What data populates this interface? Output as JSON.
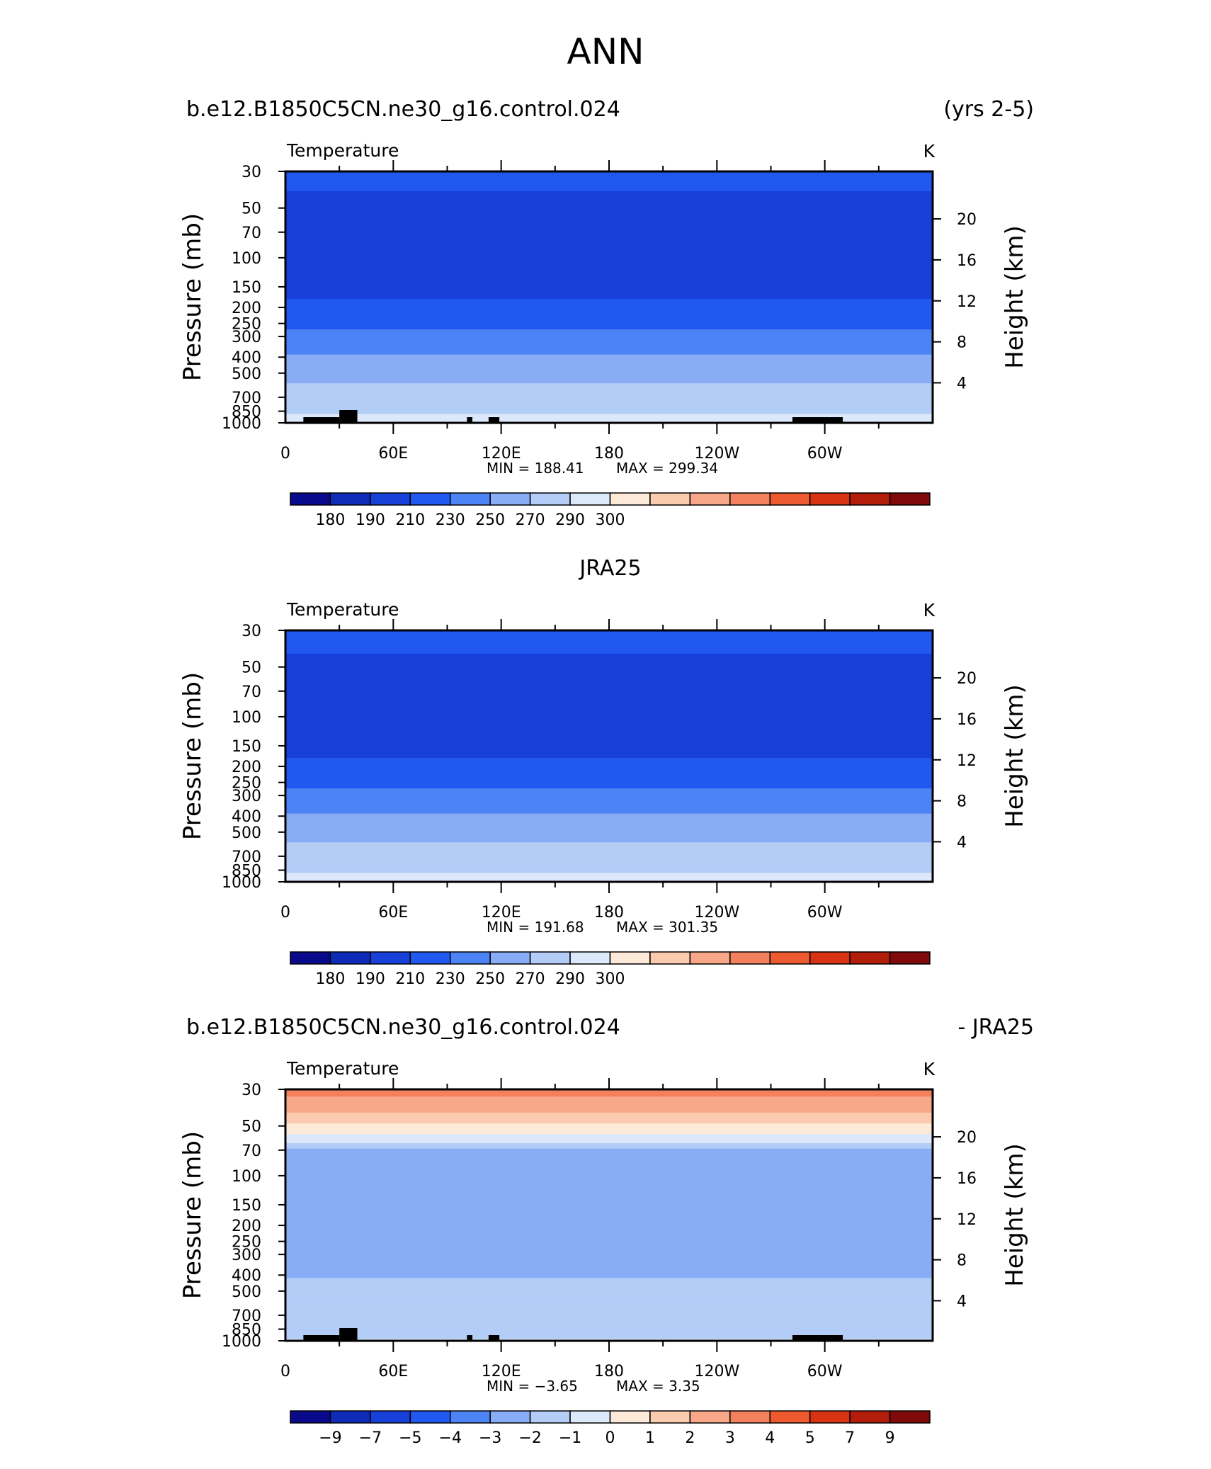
{
  "figure": {
    "title": "ANN"
  },
  "chart_data": [
    {
      "type": "heatmap",
      "case_left": "b.e12.B1850C5CN.ne30_g16.control.024",
      "case_right": "(yrs 2-5)",
      "case_center": "",
      "variable": "Temperature",
      "units": "K",
      "ylabel": "Pressure (mb)",
      "ylabel_right": "Height (km)",
      "yticks": [
        "30",
        "50",
        "70",
        "100",
        "150",
        "200",
        "250",
        "300",
        "400",
        "500",
        "700",
        "850",
        "1000"
      ],
      "ytick_values": [
        30,
        50,
        70,
        100,
        150,
        200,
        250,
        300,
        400,
        500,
        700,
        850,
        1000
      ],
      "yticks_right": [
        "20",
        "16",
        "12",
        "8",
        "4"
      ],
      "ytick_right_values": [
        20,
        16,
        12,
        8,
        4
      ],
      "xticks": [
        "0",
        "60E",
        "120E",
        "180",
        "120W",
        "60W"
      ],
      "xtick_values": [
        0,
        60,
        120,
        180,
        240,
        300
      ],
      "xlim": [
        0,
        360
      ],
      "ylim": [
        1000,
        30
      ],
      "min_label": "MIN = 188.41",
      "max_label": "MAX = 299.34",
      "levels": [
        180,
        190,
        210,
        230,
        250,
        270,
        290,
        300
      ],
      "level_labels": [
        "180",
        "190",
        "210",
        "230",
        "250",
        "270",
        "290",
        "300"
      ],
      "colorbar_labels": [
        "180",
        "190",
        "210",
        "230",
        "250",
        "270",
        "290",
        "300"
      ],
      "colors": [
        "#0a0a8c",
        "#0e2cb8",
        "#1740d8",
        "#2058f0",
        "#4d84f5",
        "#88acf5",
        "#b3cdf7",
        "#dce9fa",
        "#fde9d7",
        "#fbcbaf",
        "#f8a888",
        "#f4815d",
        "#ee5a30",
        "#d83414",
        "#b21e0a",
        "#800a0a"
      ],
      "profile": [
        [
          30,
          216
        ],
        [
          40,
          210
        ],
        [
          50,
          206
        ],
        [
          60,
          202
        ],
        [
          70,
          198
        ],
        [
          80,
          196
        ],
        [
          100,
          196
        ],
        [
          125,
          199
        ],
        [
          150,
          203
        ],
        [
          175,
          209
        ],
        [
          200,
          214
        ],
        [
          250,
          225
        ],
        [
          300,
          236
        ],
        [
          350,
          246
        ],
        [
          400,
          252
        ],
        [
          500,
          263
        ],
        [
          600,
          272
        ],
        [
          700,
          279
        ],
        [
          800,
          285
        ],
        [
          850,
          288
        ],
        [
          925,
          292
        ],
        [
          1000,
          296
        ]
      ],
      "surface_blocks": [
        [
          10,
          30
        ],
        [
          30,
          40
        ],
        [
          101,
          104
        ],
        [
          113,
          119
        ],
        [
          282,
          310
        ]
      ]
    },
    {
      "type": "heatmap",
      "case_left": "",
      "case_right": "",
      "case_center": "JRA25",
      "variable": "Temperature",
      "units": "K",
      "ylabel": "Pressure (mb)",
      "ylabel_right": "Height (km)",
      "yticks": [
        "30",
        "50",
        "70",
        "100",
        "150",
        "200",
        "250",
        "300",
        "400",
        "500",
        "700",
        "850",
        "1000"
      ],
      "ytick_values": [
        30,
        50,
        70,
        100,
        150,
        200,
        250,
        300,
        400,
        500,
        700,
        850,
        1000
      ],
      "yticks_right": [
        "20",
        "16",
        "12",
        "8",
        "4"
      ],
      "ytick_right_values": [
        20,
        16,
        12,
        8,
        4
      ],
      "xticks": [
        "0",
        "60E",
        "120E",
        "180",
        "120W",
        "60W"
      ],
      "xtick_values": [
        0,
        60,
        120,
        180,
        240,
        300
      ],
      "xlim": [
        0,
        360
      ],
      "ylim": [
        1000,
        30
      ],
      "min_label": "MIN = 191.68",
      "max_label": "MAX = 301.35",
      "levels": [
        180,
        190,
        210,
        230,
        250,
        270,
        290,
        300
      ],
      "level_labels": [
        "180",
        "190",
        "210",
        "230",
        "250",
        "270",
        "290",
        "300"
      ],
      "colorbar_labels": [
        "180",
        "190",
        "210",
        "230",
        "250",
        "270",
        "290",
        "300"
      ],
      "colors": [
        "#0a0a8c",
        "#0e2cb8",
        "#1740d8",
        "#2058f0",
        "#4d84f5",
        "#88acf5",
        "#b3cdf7",
        "#dce9fa",
        "#fde9d7",
        "#fbcbaf",
        "#f8a888",
        "#f4815d",
        "#ee5a30",
        "#d83414",
        "#b21e0a",
        "#800a0a"
      ],
      "profile": [
        [
          30,
          218
        ],
        [
          40,
          211
        ],
        [
          50,
          206
        ],
        [
          60,
          202
        ],
        [
          70,
          199
        ],
        [
          80,
          197
        ],
        [
          100,
          197
        ],
        [
          125,
          200
        ],
        [
          150,
          204
        ],
        [
          175,
          209
        ],
        [
          200,
          214
        ],
        [
          250,
          225
        ],
        [
          300,
          236
        ],
        [
          350,
          246
        ],
        [
          400,
          252
        ],
        [
          500,
          263
        ],
        [
          600,
          272
        ],
        [
          700,
          279
        ],
        [
          800,
          285
        ],
        [
          850,
          288
        ],
        [
          925,
          292
        ],
        [
          1000,
          297
        ]
      ],
      "surface_blocks": []
    },
    {
      "type": "heatmap",
      "case_left": "b.e12.B1850C5CN.ne30_g16.control.024",
      "case_right": "- JRA25",
      "case_center": "",
      "variable": "Temperature",
      "units": "K",
      "ylabel": "Pressure (mb)",
      "ylabel_right": "Height (km)",
      "yticks": [
        "30",
        "50",
        "70",
        "100",
        "150",
        "200",
        "250",
        "300",
        "400",
        "500",
        "700",
        "850",
        "1000"
      ],
      "ytick_values": [
        30,
        50,
        70,
        100,
        150,
        200,
        250,
        300,
        400,
        500,
        700,
        850,
        1000
      ],
      "yticks_right": [
        "20",
        "16",
        "12",
        "8",
        "4"
      ],
      "ytick_right_values": [
        20,
        16,
        12,
        8,
        4
      ],
      "xticks": [
        "0",
        "60E",
        "120E",
        "180",
        "120W",
        "60W"
      ],
      "xtick_values": [
        0,
        60,
        120,
        180,
        240,
        300
      ],
      "xlim": [
        0,
        360
      ],
      "ylim": [
        1000,
        30
      ],
      "min_label": "MIN =  −3.65",
      "max_label": "MAX =   3.35",
      "levels": [
        -9,
        -7,
        -5,
        -4,
        -3,
        -2,
        -1,
        0,
        1,
        2,
        3,
        4,
        5,
        7,
        9
      ],
      "level_labels": [
        "−9",
        "−7",
        "−5",
        "−4",
        "−3",
        "−2",
        "−1",
        "0",
        "1",
        "2",
        "3",
        "4",
        "5",
        "7",
        "9"
      ],
      "colorbar_labels": [
        "−9",
        "−7",
        "−5",
        "−4",
        "−3",
        "−2",
        "−1",
        "0",
        "1",
        "2",
        "3",
        "4",
        "5",
        "7",
        "9"
      ],
      "colors": [
        "#0a0a8c",
        "#0e2cb8",
        "#1740d8",
        "#2058f0",
        "#4d84f5",
        "#88acf5",
        "#b3cdf7",
        "#dce9fa",
        "#fde9d7",
        "#fbcbaf",
        "#f8a888",
        "#f4815d",
        "#ee5a30",
        "#d83414",
        "#b21e0a",
        "#800a0a"
      ],
      "profile": [
        [
          30,
          3.3
        ],
        [
          38,
          2.5
        ],
        [
          45,
          1.5
        ],
        [
          52,
          0.6
        ],
        [
          58,
          -0.2
        ],
        [
          65,
          -1.3
        ],
        [
          70,
          -2.5
        ],
        [
          80,
          -2.4
        ],
        [
          100,
          -2.3
        ],
        [
          150,
          -2.2
        ],
        [
          200,
          -2.2
        ],
        [
          300,
          -2.3
        ],
        [
          400,
          -2.1
        ],
        [
          500,
          -1.6
        ],
        [
          600,
          -1.9
        ],
        [
          700,
          -2.0
        ],
        [
          850,
          -1.8
        ],
        [
          950,
          -1.2
        ],
        [
          1000,
          -0.8
        ]
      ],
      "surface_blocks": [
        [
          10,
          30
        ],
        [
          30,
          40
        ],
        [
          101,
          104
        ],
        [
          113,
          119
        ],
        [
          282,
          310
        ]
      ]
    }
  ]
}
